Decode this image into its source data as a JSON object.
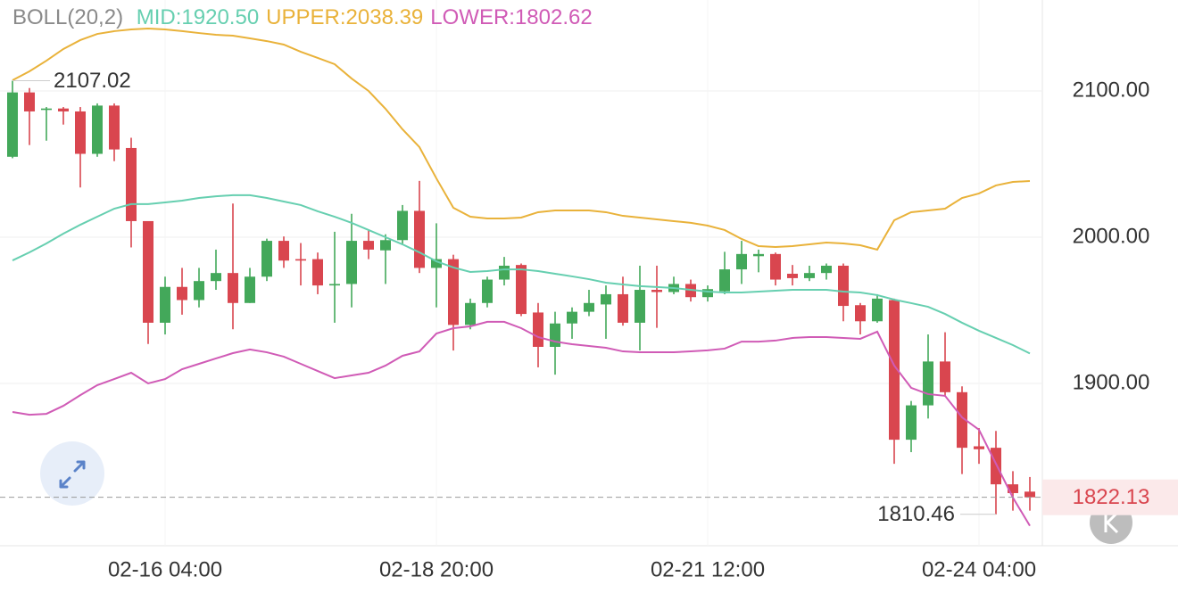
{
  "chart_data": {
    "type": "candlestick",
    "legend_title": "BOLL(20,2)",
    "categories": [
      null,
      null,
      null,
      null,
      null,
      null,
      null,
      null,
      null,
      "02-16 04:00",
      null,
      null,
      null,
      null,
      null,
      null,
      null,
      null,
      null,
      null,
      null,
      null,
      null,
      null,
      null,
      "02-18 20:00",
      null,
      null,
      null,
      null,
      null,
      null,
      null,
      null,
      null,
      null,
      null,
      null,
      null,
      null,
      null,
      "02-21 12:00",
      null,
      null,
      null,
      null,
      null,
      null,
      null,
      null,
      null,
      null,
      null,
      null,
      null,
      null,
      null,
      "02-24 04:00",
      null,
      null,
      null
    ],
    "open": [
      2055,
      2099,
      2087,
      2088,
      2086,
      2057,
      2090,
      2061,
      2011,
      1941.5,
      1966,
      1957,
      1970,
      1975.5,
      1955,
      1973,
      1997.5,
      1985,
      1985,
      1967,
      1968,
      1997.5,
      1991,
      1998,
      2018,
      1979,
      1985,
      1940,
      1955,
      1971,
      1981,
      1948.5,
      1925,
      1941,
      1949,
      1954,
      1961,
      1941.5,
      1964,
      1962.5,
      1968,
      1959,
      1963,
      1978,
      1987,
      1988.5,
      1975,
      1972,
      1975.5,
      1980.5,
      1953.5,
      1942.5,
      1957,
      1861.5,
      1885,
      1915,
      1894,
      1857,
      1856,
      1831,
      1826
    ],
    "high": [
      2107.02,
      2102,
      2089,
      2089,
      2089,
      2091.5,
      2091.5,
      2068,
      2011,
      1973,
      1979,
      1979,
      1991.5,
      2023,
      1979,
      1999,
      2000.5,
      1996,
      1989.5,
      2003.7,
      2016,
      2005,
      2002,
      2022,
      2038.5,
      2009.5,
      1988,
      1958,
      1973,
      1986.5,
      1982,
      1955,
      1949,
      1952,
      1964,
      1967,
      1973,
      1980.5,
      1980.5,
      1973,
      1971,
      1967,
      1990,
      1997.5,
      1991.5,
      1989.5,
      1981,
      1980.5,
      1982,
      1982,
      1955,
      1961,
      1958,
      1888,
      1933.5,
      1935,
      1898,
      1869.5,
      1867.5,
      1840,
      1836
    ],
    "low": [
      2054,
      2063,
      2066,
      2077,
      2034,
      2055,
      2052,
      1993,
      1927,
      1933.5,
      1947,
      1952,
      1964,
      1937,
      1955,
      1970,
      1979,
      1967,
      1961,
      1941.5,
      1952,
      1985,
      1968,
      1995,
      1975.5,
      1952,
      1922.5,
      1937,
      1952,
      1967,
      1946,
      1911,
      1906,
      1930.5,
      1946,
      1930.5,
      1939.5,
      1922.5,
      1938,
      1961,
      1956,
      1956,
      1961,
      1968,
      1976,
      1967,
      1967,
      1970,
      1971,
      1942.5,
      1933.5,
      1941.5,
      1845,
      1853,
      1876,
      1891,
      1838,
      1845,
      1810.46,
      1813,
      1813
    ],
    "close": [
      2099,
      2086,
      2088,
      2086,
      2057,
      2090,
      2060,
      2011,
      1941.5,
      1966,
      1957,
      1970,
      1975.5,
      1955,
      1973,
      1997.5,
      1984,
      1984,
      1967,
      1968,
      1997.5,
      1991.5,
      1998,
      2018,
      1979,
      1985,
      1940,
      1955,
      1971,
      1980.5,
      1947.5,
      1925,
      1941,
      1949,
      1955,
      1961,
      1941.5,
      1964,
      1962.5,
      1968,
      1959,
      1964.5,
      1978,
      1988.5,
      1988.5,
      1971,
      1972,
      1975.5,
      1980.5,
      1953,
      1942.5,
      1958,
      1861.5,
      1885,
      1915,
      1894,
      1856,
      1855,
      1831,
      1825,
      1822.13
    ],
    "up_color": "#43a85a",
    "down_color": "#d9464f",
    "series": [
      {
        "name": "MID:1920.50",
        "color": "#66cfb0",
        "values": [
          1984.1,
          1989.6,
          1995.7,
          2002.4,
          2008.5,
          2014.0,
          2019.5,
          2022.6,
          2022.6,
          2023.8,
          2025.0,
          2026.8,
          2028.0,
          2028.7,
          2028.7,
          2026.8,
          2024.4,
          2022.0,
          2017.7,
          2014.0,
          2009.8,
          2004.9,
          2000.0,
          1995.1,
          1989.6,
          1983.5,
          1979.3,
          1976.2,
          1976.8,
          1978.0,
          1978.0,
          1976.8,
          1975.0,
          1973.2,
          1971.3,
          1968.9,
          1967.7,
          1966.5,
          1965.9,
          1965.2,
          1964.0,
          1962.8,
          1962.2,
          1962.2,
          1962.8,
          1963.4,
          1964.0,
          1964.0,
          1964.0,
          1962.8,
          1962.2,
          1960.4,
          1957.3,
          1954.9,
          1952.4,
          1947.5,
          1941.5,
          1936.0,
          1931.1,
          1926.2,
          1920.5
        ]
      },
      {
        "name": "UPPER:2038.39",
        "color": "#e9b23a",
        "values": [
          2107.3,
          2113.4,
          2120.7,
          2128.7,
          2134.8,
          2139.0,
          2140.9,
          2142.1,
          2142.7,
          2142.1,
          2140.9,
          2139.6,
          2138.4,
          2137.8,
          2136.0,
          2134.1,
          2131.7,
          2126.8,
          2122.6,
          2118.3,
          2108.5,
          2100.0,
          2087.8,
          2073.8,
          2061.6,
          2040.2,
          2020.1,
          2014.0,
          2012.8,
          2012.8,
          2013.4,
          2017.1,
          2018.3,
          2018.3,
          2018.3,
          2017.1,
          2014.6,
          2013.4,
          2012.2,
          2011.0,
          2009.8,
          2007.9,
          2004.9,
          1998.8,
          1993.9,
          1993.3,
          1993.9,
          1995.1,
          1996.3,
          1995.7,
          1994.5,
          1991.5,
          2011.6,
          2017.1,
          2018.3,
          2019.5,
          2026.8,
          2029.9,
          2035.4,
          2037.8,
          2038.39
        ]
      },
      {
        "name": "LOWER:1802.62",
        "color": "#d05bb6",
        "values": [
          1880.5,
          1878.6,
          1879.2,
          1884.7,
          1892.0,
          1898.8,
          1903.0,
          1907.3,
          1900.0,
          1903.0,
          1909.7,
          1913.4,
          1917.1,
          1920.7,
          1923.2,
          1921.3,
          1918.3,
          1913.4,
          1908.5,
          1903.6,
          1905.5,
          1907.3,
          1912.2,
          1918.9,
          1921.9,
          1934.1,
          1937.8,
          1939.0,
          1942.1,
          1942.1,
          1937.8,
          1931.7,
          1928.6,
          1926.8,
          1925.6,
          1924.4,
          1921.9,
          1921.3,
          1921.3,
          1921.3,
          1921.9,
          1922.6,
          1923.8,
          1928.6,
          1928.6,
          1929.3,
          1931.1,
          1931.7,
          1931.7,
          1931.1,
          1930.5,
          1935.4,
          1912.2,
          1897.0,
          1892.7,
          1891.5,
          1876.8,
          1868.3,
          1845.1,
          1821.9,
          1802.62
        ]
      }
    ],
    "max_price": 2107.02,
    "min_price": 1810.46,
    "last_price": 1822.13,
    "ylim": [
      1789,
      2162.2
    ],
    "yticks": [
      {
        "value": 1900,
        "label": "1900.00"
      },
      {
        "value": 2000,
        "label": "2000.00"
      },
      {
        "value": 2100,
        "label": "2100.00"
      }
    ],
    "grid": true
  }
}
